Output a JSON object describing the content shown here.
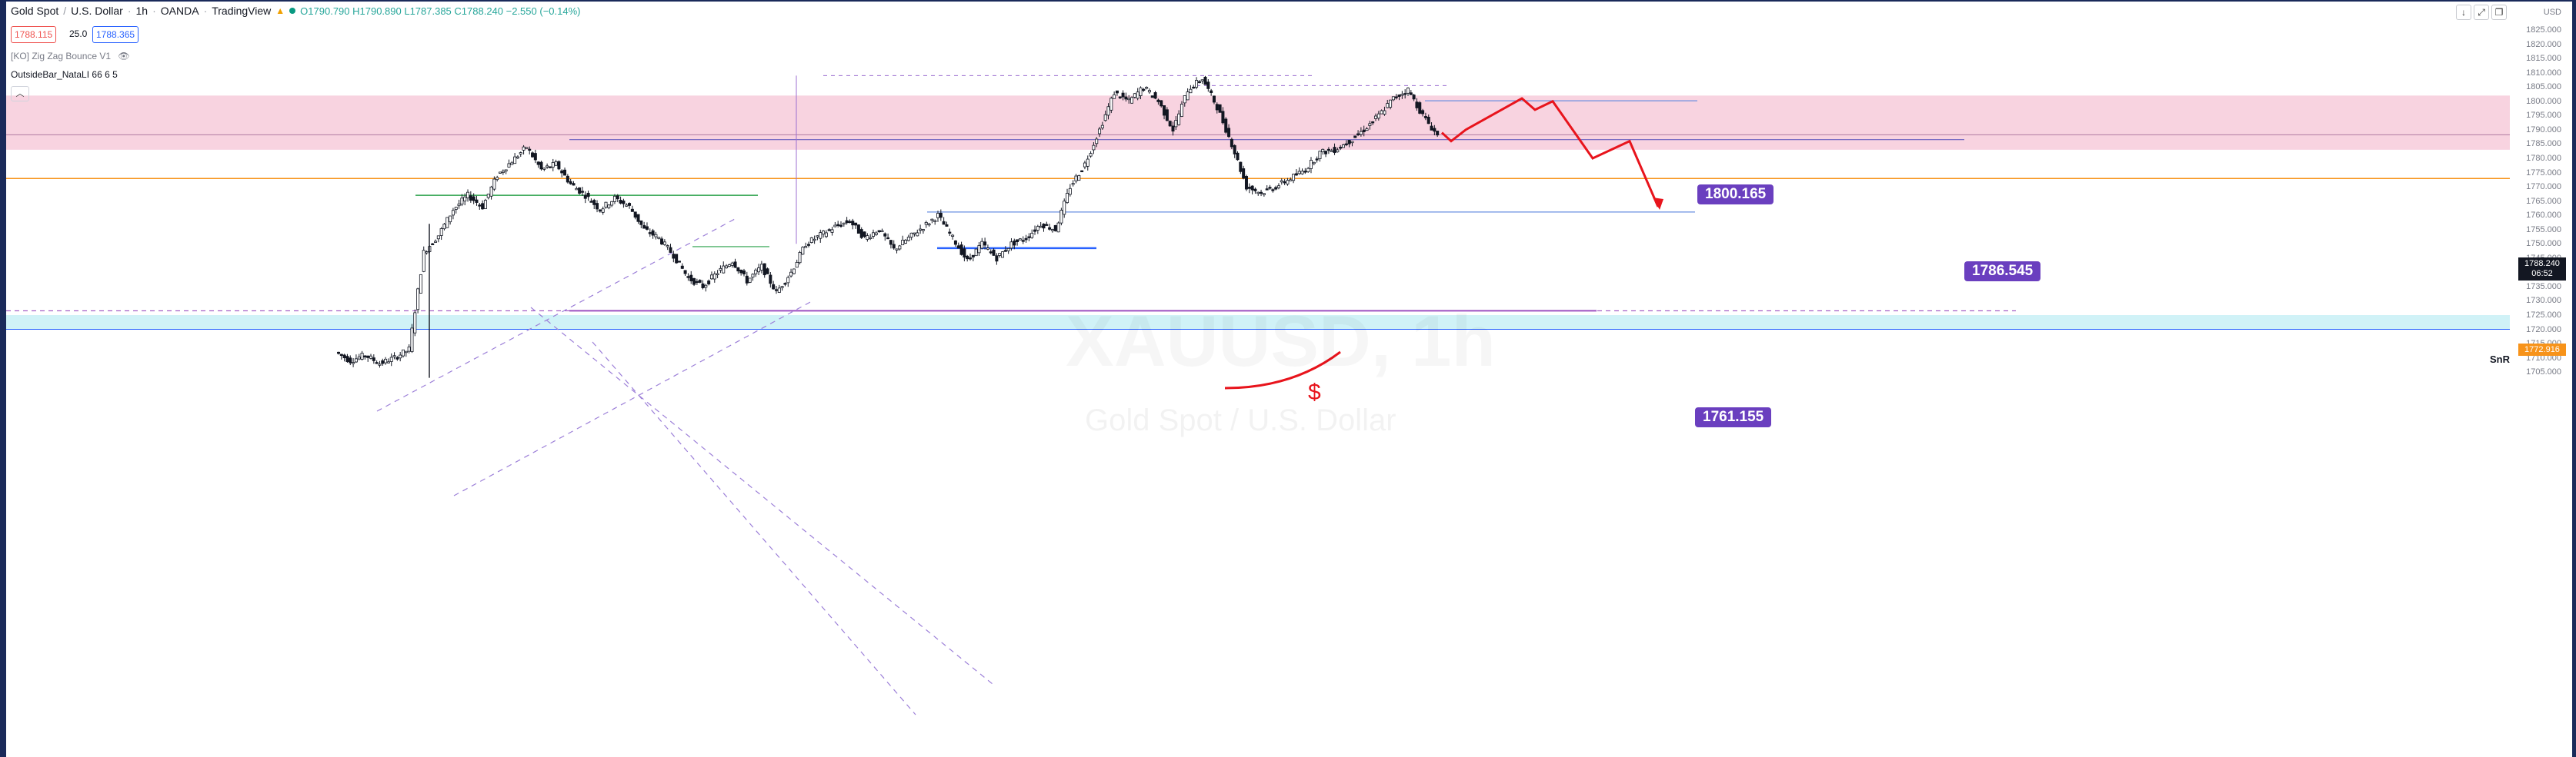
{
  "header": {
    "title": "Gold Spot",
    "quote": "U.S. Dollar",
    "interval": "1h",
    "broker": "OANDA",
    "platform": "TradingView",
    "ohlc": "O1790.790 H1790.890 L1787.385 C1788.240 −2.550 (−0.14%)",
    "sell_price": "1788.115",
    "spread": "25.0",
    "buy_price": "1788.365"
  },
  "indicators": [
    "[KO] Zig Zag Bounce V1",
    "OutsideBar_NataLI 66 6 5"
  ],
  "collapse_icon": "chevron-up",
  "window_icons": [
    "arrow-down",
    "maximize",
    "restore"
  ],
  "watermark": {
    "symbol": "XAUUSD, 1h",
    "name": "Gold Spot / U.S. Dollar"
  },
  "axis": {
    "currency": "USD",
    "ticks": [
      "1825.000",
      "1820.000",
      "1815.000",
      "1810.000",
      "1805.000",
      "1800.000",
      "1795.000",
      "1790.000",
      "1785.000",
      "1780.000",
      "1775.000",
      "1770.000",
      "1765.000",
      "1760.000",
      "1755.000",
      "1750.000",
      "1745.000",
      "1740.000",
      "1735.000",
      "1730.000",
      "1725.000",
      "1720.000",
      "1715.000",
      "1710.000",
      "1705.000"
    ],
    "current_price": "1788.240",
    "countdown": "06:52",
    "snr_price": "1772.916"
  },
  "snr_label": "SnR",
  "price_labels": [
    "1800.165",
    "1786.545",
    "1761.155"
  ],
  "annotation_symbol": "$",
  "colors": {
    "up": "#26a69a",
    "down": "#ef5350",
    "candle": "#131722",
    "pink_zone": "#f8d3e0",
    "cyan_zone": "#d0f2f7",
    "label_bg": "#6a3fbf",
    "projection": "#e8141c",
    "snr": "#f7931a"
  },
  "chart_data": {
    "type": "candlestick",
    "symbol": "XAUUSD",
    "interval": "1h",
    "ylim": [
      1703,
      1828
    ],
    "close_path": [
      1712,
      1709,
      1711,
      1708,
      1710,
      1713,
      1747,
      1753,
      1762,
      1767,
      1763,
      1774,
      1779,
      1784,
      1776,
      1778,
      1771,
      1767,
      1762,
      1766,
      1763,
      1755,
      1752,
      1746,
      1738,
      1735,
      1740,
      1744,
      1737,
      1742,
      1733,
      1740,
      1750,
      1753,
      1756,
      1758,
      1752,
      1755,
      1748,
      1752,
      1756,
      1760,
      1752,
      1744,
      1750,
      1745,
      1750,
      1752,
      1757,
      1755,
      1770,
      1778,
      1790,
      1803,
      1800,
      1805,
      1800,
      1790,
      1804,
      1808,
      1798,
      1785,
      1770,
      1768,
      1770,
      1773,
      1776,
      1782,
      1783,
      1786,
      1790,
      1795,
      1801,
      1804,
      1795,
      1788
    ],
    "zones": [
      {
        "from": 1783,
        "to": 1802,
        "color": "pink"
      },
      {
        "from": 1720,
        "to": 1725,
        "color": "cyan"
      }
    ],
    "levels": [
      1800.165,
      1786.545,
      1761.155,
      1772.916
    ],
    "projection": [
      1789,
      1786,
      1790,
      1801,
      1797,
      1800,
      1780,
      1786,
      1763
    ]
  }
}
